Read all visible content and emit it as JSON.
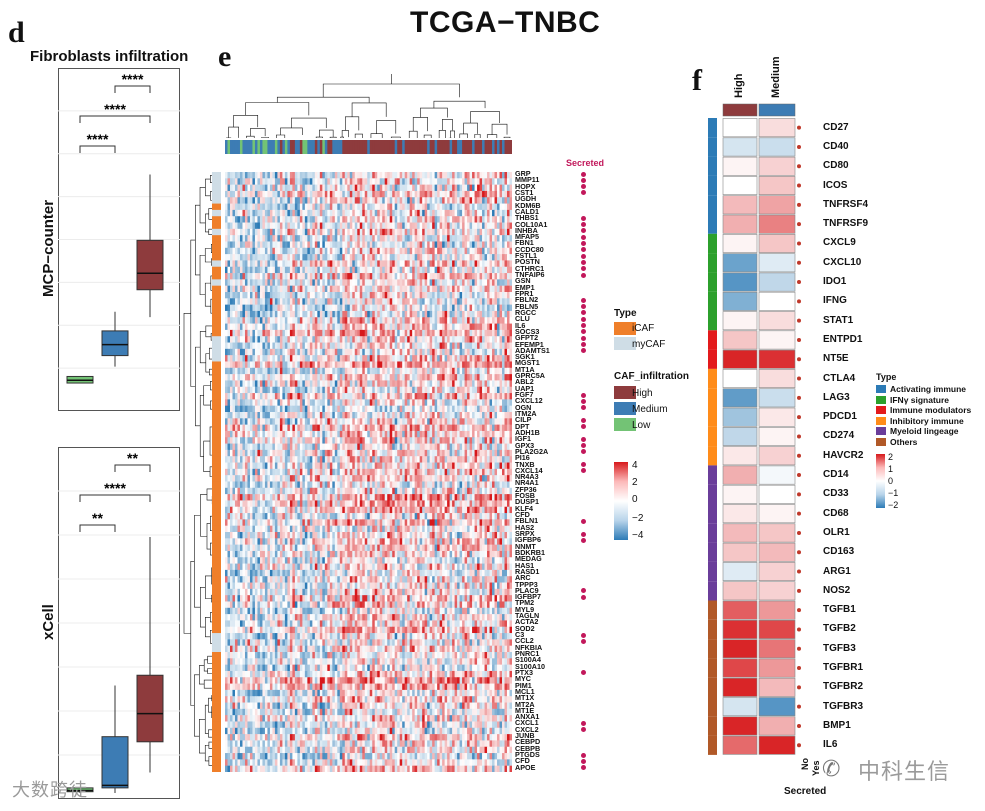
{
  "title": "TCGA−TNBC",
  "panel_d": {
    "letter": "d",
    "title": "Fibroblasts infiltration",
    "plots": [
      {
        "ylabel": "MCP−counter",
        "sig": [
          "****",
          "****",
          "****"
        ],
        "boxes": [
          {
            "group": "Low",
            "q1": 0.04,
            "med": 0.045,
            "q3": 0.052,
            "lo": 0.04,
            "hi": 0.052
          },
          {
            "group": "Medium",
            "q1": 0.09,
            "med": 0.11,
            "q3": 0.135,
            "lo": 0.07,
            "hi": 0.17
          },
          {
            "group": "High",
            "q1": 0.21,
            "med": 0.24,
            "q3": 0.3,
            "lo": 0.16,
            "hi": 0.42
          }
        ]
      },
      {
        "ylabel": "xCell",
        "sig": [
          "**",
          "****",
          "**"
        ],
        "boxes": [
          {
            "group": "Low",
            "q1": 0.005,
            "med": 0.01,
            "q3": 0.02,
            "lo": 0.0,
            "hi": 0.02
          },
          {
            "group": "Medium",
            "q1": 0.02,
            "med": 0.03,
            "q3": 0.22,
            "lo": 0.0,
            "hi": 0.42
          },
          {
            "group": "High",
            "q1": 0.2,
            "med": 0.31,
            "q3": 0.46,
            "lo": 0.08,
            "hi": 1.0
          }
        ]
      }
    ]
  },
  "panel_e": {
    "letter": "e",
    "secreted_label": "Secreted",
    "genes": [
      "GRP",
      "MMP11",
      "HOPX",
      "CST1",
      "UGDH",
      "KDM6B",
      "CALD1",
      "THBS1",
      "COL10A1",
      "INHBA",
      "MFAP5",
      "FBN1",
      "CCDC80",
      "FSTL1",
      "POSTN",
      "CTHRC1",
      "TNFAIP6",
      "GSN",
      "EMP1",
      "FPR1",
      "FBLN2",
      "FBLN5",
      "RGCC",
      "CLU",
      "IL6",
      "SOCS3",
      "GFPT2",
      "EFEMP1",
      "ADAMTS1",
      "SGK1",
      "MGST1",
      "MT1A",
      "GPRC5A",
      "ABL2",
      "UAP1",
      "FGF7",
      "CXCL12",
      "OGN",
      "ITM2A",
      "CILP",
      "DPT",
      "ADH1B",
      "IGF1",
      "GPX3",
      "PLA2G2A",
      "PI16",
      "TNXB",
      "CXCL14",
      "NR4A3",
      "NR4A1",
      "ZFP36",
      "FOSB",
      "DUSP1",
      "KLF4",
      "CFD",
      "FBLN1",
      "HAS2",
      "SRPX",
      "IGFBP6",
      "NNMT",
      "BDKRB1",
      "MEDAG",
      "HAS1",
      "RASD1",
      "ARC",
      "TPPP3",
      "PLAC9",
      "IGFBP7",
      "TPM2",
      "MYL9",
      "TAGLN",
      "ACTA2",
      "SOD2",
      "C3",
      "CCL2",
      "NFKBIA",
      "PNRC1",
      "S100A4",
      "S100A10",
      "PTX3",
      "MYC",
      "PIM1",
      "MCL1",
      "MT1X",
      "MT2A",
      "MT1E",
      "ANXA1",
      "CXCL1",
      "CXCL2",
      "JUNB",
      "CEBPD",
      "CEBPB",
      "PTGDS",
      "CFD",
      "APOE"
    ],
    "secreted": [
      1,
      1,
      1,
      1,
      0,
      0,
      0,
      1,
      1,
      1,
      1,
      1,
      1,
      1,
      1,
      1,
      1,
      0,
      0,
      0,
      1,
      1,
      1,
      1,
      1,
      1,
      1,
      1,
      1,
      0,
      0,
      0,
      0,
      0,
      0,
      1,
      1,
      1,
      0,
      1,
      1,
      0,
      1,
      1,
      1,
      0,
      1,
      1,
      0,
      0,
      0,
      0,
      0,
      0,
      0,
      1,
      0,
      1,
      1,
      0,
      0,
      0,
      0,
      0,
      0,
      0,
      1,
      1,
      0,
      0,
      0,
      0,
      0,
      1,
      1,
      0,
      0,
      0,
      0,
      1,
      0,
      0,
      0,
      0,
      0,
      0,
      0,
      1,
      1,
      0,
      0,
      0,
      1,
      1,
      1
    ],
    "type_legend": {
      "title": "Type",
      "items": [
        {
          "label": "iCAF",
          "color": "#ef7f2a"
        },
        {
          "label": "myCAF",
          "color": "#cfdde6"
        }
      ]
    },
    "caf_legend": {
      "title": "CAF_infiltration",
      "items": [
        {
          "label": "High",
          "color": "#8e3b3d"
        },
        {
          "label": "Medium",
          "color": "#3d7cb4"
        },
        {
          "label": "Low",
          "color": "#73c375"
        }
      ]
    },
    "scale_ticks": [
      "4",
      "2",
      "0",
      "−2",
      "−4"
    ]
  },
  "panel_f": {
    "letter": "f",
    "col_labels": [
      "High",
      "Medium"
    ],
    "col_colors": [
      "#8e3b3d",
      "#3d7cb4"
    ],
    "genes": [
      "CD27",
      "CD40",
      "CD80",
      "ICOS",
      "TNFRSF4",
      "TNFRSF9",
      "CXCL9",
      "CXCL10",
      "IDO1",
      "IFNG",
      "STAT1",
      "ENTPD1",
      "NT5E",
      "CTLA4",
      "LAG3",
      "PDCD1",
      "CD274",
      "HAVCR2",
      "CD14",
      "CD33",
      "CD68",
      "OLR1",
      "CD163",
      "ARG1",
      "NOS2",
      "TGFB1",
      "TGFB2",
      "TGFB3",
      "TGFBR1",
      "TGFBR2",
      "TGFBR3",
      "BMP1",
      "IL6"
    ],
    "gene_types": [
      0,
      0,
      0,
      0,
      0,
      0,
      1,
      1,
      1,
      1,
      1,
      2,
      2,
      3,
      3,
      3,
      3,
      3,
      4,
      4,
      4,
      4,
      4,
      4,
      4,
      5,
      5,
      5,
      5,
      5,
      5,
      5,
      5
    ],
    "values": [
      [
        0.0,
        0.3
      ],
      [
        -0.4,
        -0.5
      ],
      [
        0.1,
        0.4
      ],
      [
        0.0,
        0.5
      ],
      [
        0.6,
        0.8
      ],
      [
        0.7,
        1.1
      ],
      [
        0.1,
        0.5
      ],
      [
        -1.4,
        -0.3
      ],
      [
        -1.6,
        -0.6
      ],
      [
        -1.2,
        0.0
      ],
      [
        0.1,
        0.3
      ],
      [
        0.5,
        0.1
      ],
      [
        1.9,
        1.8
      ],
      [
        0.0,
        0.3
      ],
      [
        -1.5,
        -0.5
      ],
      [
        -0.9,
        0.2
      ],
      [
        -0.6,
        0.1
      ],
      [
        0.2,
        0.4
      ],
      [
        0.7,
        -0.1
      ],
      [
        0.1,
        0.0
      ],
      [
        0.2,
        0.1
      ],
      [
        0.6,
        0.5
      ],
      [
        0.5,
        0.6
      ],
      [
        -0.3,
        0.4
      ],
      [
        0.5,
        0.4
      ],
      [
        1.4,
        0.9
      ],
      [
        1.8,
        1.6
      ],
      [
        1.9,
        1.2
      ],
      [
        1.6,
        0.9
      ],
      [
        1.9,
        0.6
      ],
      [
        -0.4,
        -1.6
      ],
      [
        1.9,
        0.7
      ],
      [
        1.3,
        1.9
      ]
    ],
    "type_legend": {
      "title": "Type",
      "items": [
        {
          "label": "Activating immune",
          "color": "#2c7bb6"
        },
        {
          "label": "IFNγ signature",
          "color": "#2ca02c"
        },
        {
          "label": "Immune modulators",
          "color": "#e31a1c"
        },
        {
          "label": "Inhibitory immune",
          "color": "#ff8c1a"
        },
        {
          "label": "Myeloid lingeage",
          "color": "#6a3d9a"
        },
        {
          "label": "Others",
          "color": "#b15928"
        }
      ]
    },
    "scale_ticks": [
      "2",
      "1",
      "0",
      "−1",
      "−2"
    ],
    "secreted_axis": {
      "title": "Secreted",
      "ticks": [
        "No",
        "Yes"
      ]
    }
  },
  "watermarks": [
    "大数跨徒",
    "中科生信"
  ]
}
